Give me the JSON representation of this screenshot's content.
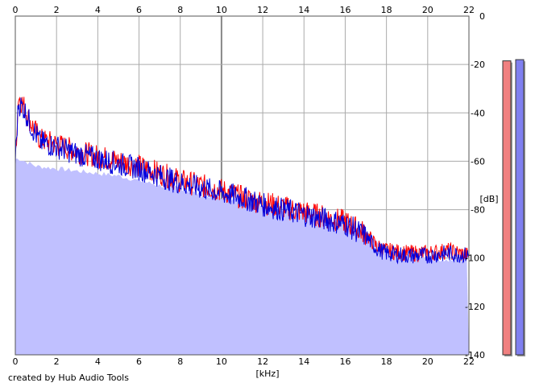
{
  "credit": "created by Hub Audio Tools",
  "chart_data": {
    "type": "area",
    "title": "",
    "xlabel": "[kHz]",
    "ylabel": "[dB]",
    "xlim": [
      0,
      22
    ],
    "ylim": [
      -140,
      0
    ],
    "x_ticks": [
      0,
      2,
      4,
      6,
      8,
      10,
      12,
      14,
      16,
      18,
      20,
      22
    ],
    "y_ticks": [
      0,
      -20,
      -40,
      -60,
      -80,
      -100,
      -120,
      -140
    ],
    "grid": true,
    "legend": "none",
    "series": [
      {
        "channel": "left",
        "color": "#ff0000",
        "x": [
          0,
          0.15,
          0.4,
          0.8,
          1.2,
          2,
          3,
          4,
          5,
          6,
          7,
          8,
          9,
          10,
          11,
          12,
          13,
          14,
          15,
          16,
          17,
          17.5,
          18,
          19,
          20,
          21,
          22
        ],
        "values": [
          -60,
          -33,
          -37,
          -45,
          -51,
          -53,
          -56,
          -58,
          -60,
          -62,
          -65,
          -68,
          -70,
          -72,
          -75,
          -77,
          -79,
          -81,
          -83,
          -85,
          -90,
          -95,
          -97,
          -98,
          -98,
          -97,
          -99
        ]
      },
      {
        "channel": "right",
        "color": "#0000dd",
        "x": [
          0,
          0.15,
          0.4,
          0.8,
          1.2,
          2,
          3,
          4,
          5,
          6,
          7,
          8,
          9,
          10,
          11,
          12,
          13,
          14,
          15,
          16,
          17,
          17.5,
          18,
          19,
          20,
          21,
          22
        ],
        "values": [
          -60,
          -36,
          -38,
          -46,
          -52,
          -54,
          -57,
          -59,
          -61,
          -63,
          -66,
          -69,
          -71,
          -73,
          -75,
          -78,
          -80,
          -82,
          -84,
          -86,
          -91,
          -96,
          -98,
          -99,
          -99,
          -98,
          -99
        ]
      },
      {
        "channel": "fill",
        "color": "#c0c0ff",
        "x": [
          0,
          0.2,
          1,
          2,
          3,
          4,
          5,
          6,
          7,
          8,
          9,
          10,
          11,
          12,
          13,
          14,
          15,
          16,
          17,
          18,
          19,
          20,
          21,
          22
        ],
        "values": [
          -59,
          -59,
          -62,
          -63,
          -64,
          -65,
          -66,
          -68,
          -70,
          -71,
          -74,
          -75,
          -76,
          -78,
          -80,
          -82,
          -84,
          -86,
          -90,
          -97,
          -99,
          -100,
          -101,
          -101
        ]
      }
    ],
    "level_meters": [
      {
        "channel": "left",
        "color": "#f08080",
        "level_db": -18.5
      },
      {
        "channel": "right",
        "color": "#8080f0",
        "level_db": -18.0
      }
    ]
  }
}
